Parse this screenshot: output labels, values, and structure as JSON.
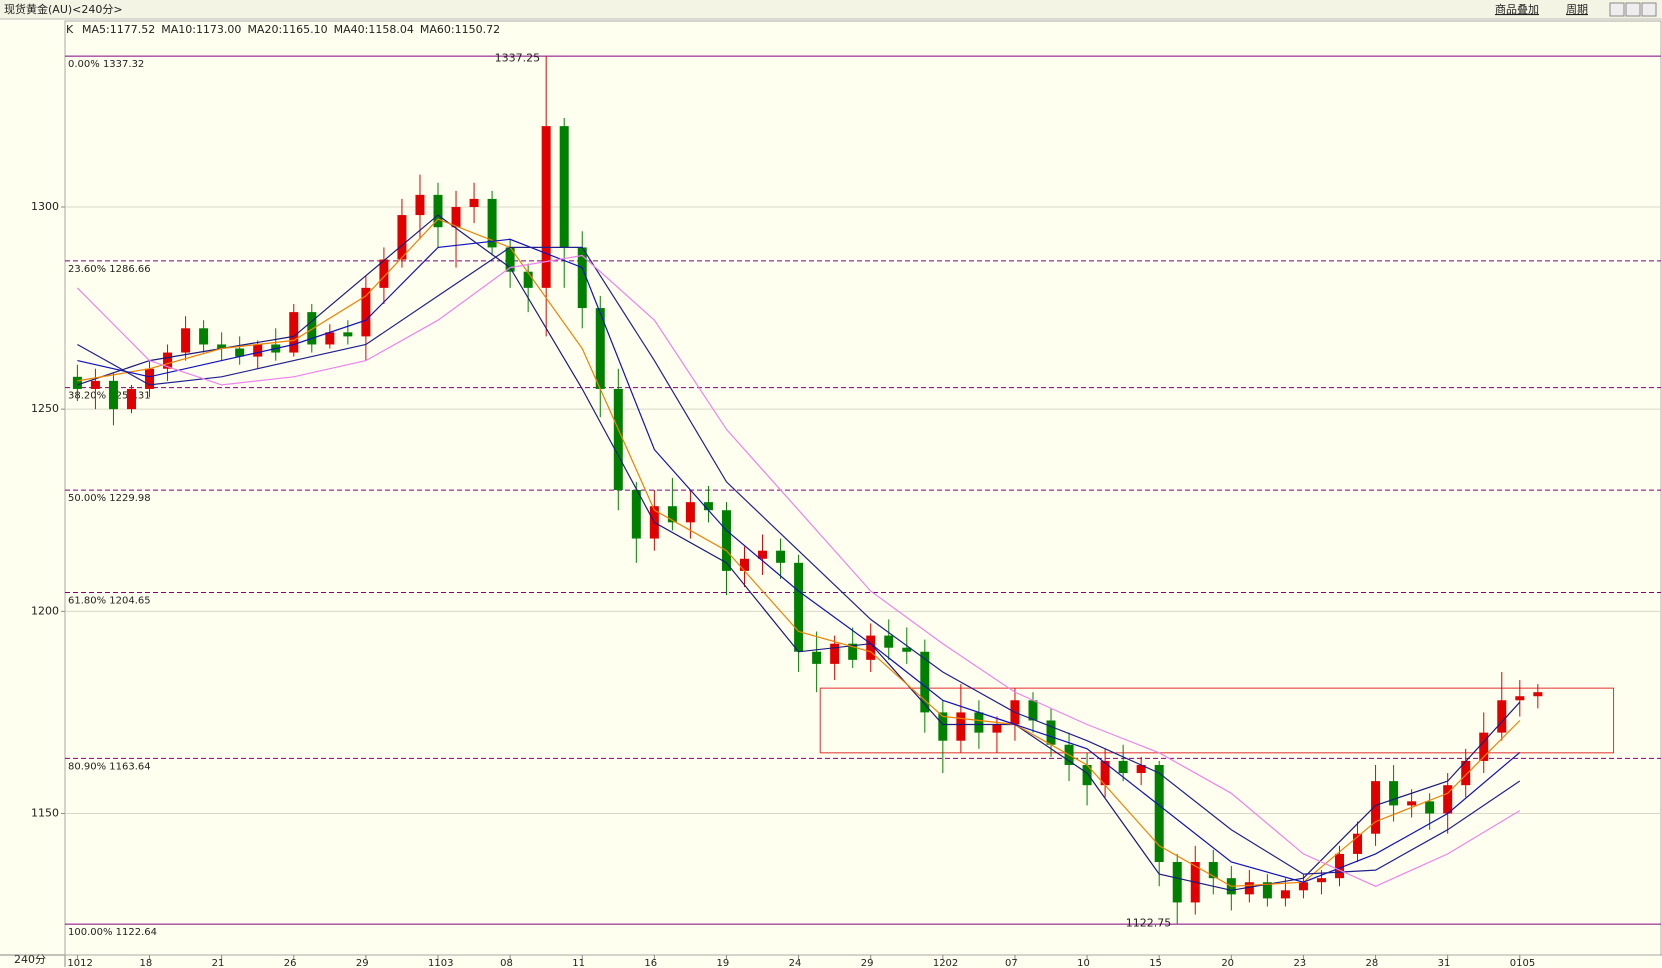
{
  "header": {
    "title": "现货黄金(AU)<240分>",
    "buttons": [
      "商品叠加",
      "周期"
    ]
  },
  "chart_data": {
    "type": "candlestick",
    "indicator": "K",
    "period": "240分",
    "categories": [
      "1012",
      null,
      null,
      null,
      "18",
      null,
      null,
      null,
      "21",
      null,
      null,
      null,
      "26",
      null,
      null,
      null,
      "29",
      null,
      null,
      null,
      "1103",
      null,
      null,
      null,
      "08",
      null,
      null,
      null,
      "11",
      null,
      null,
      null,
      "16",
      null,
      null,
      null,
      "19",
      null,
      null,
      null,
      "24",
      null,
      null,
      null,
      "29",
      null,
      null,
      null,
      "1202",
      null,
      null,
      null,
      "07",
      null,
      null,
      null,
      "10",
      null,
      null,
      null,
      "15",
      null,
      null,
      null,
      "20",
      null,
      null,
      null,
      "23",
      null,
      null,
      null,
      "28",
      null,
      null,
      null,
      "31",
      null,
      null,
      null,
      "0105",
      null
    ],
    "candles": {
      "open": [
        1258,
        1255,
        1257,
        1250,
        1255,
        1260,
        1264,
        1270,
        1266,
        1265,
        1263,
        1266,
        1264,
        1274,
        1266,
        1269,
        1268,
        1280,
        1287,
        1298,
        1303,
        1295,
        1300,
        1302,
        1290,
        1284,
        1280,
        1320,
        1290,
        1275,
        1255,
        1230,
        1218,
        1226,
        1222,
        1227,
        1225,
        1210,
        1213,
        1215,
        1212,
        1190,
        1187,
        1192,
        1188,
        1194,
        1191,
        1190,
        1175,
        1168,
        1175,
        1170,
        1172,
        1178,
        1173,
        1167,
        1162,
        1157,
        1163,
        1160,
        1162,
        1138,
        1128,
        1138,
        1134,
        1130,
        1133,
        1129,
        1131,
        1133,
        1134,
        1140,
        1145,
        1158,
        1152,
        1153,
        1150,
        1157,
        1163,
        1170,
        1178,
        1179
      ],
      "high": [
        1261,
        1260,
        1259,
        1256,
        1262,
        1266,
        1273,
        1272,
        1269,
        1268,
        1267,
        1270,
        1276,
        1276,
        1271,
        1272,
        1283,
        1290,
        1302,
        1308,
        1306,
        1304,
        1306,
        1304,
        1292,
        1286,
        1337.25,
        1322,
        1294,
        1278,
        1260,
        1232,
        1230,
        1233,
        1230,
        1231,
        1227,
        1216,
        1219,
        1218,
        1214,
        1195,
        1194,
        1196,
        1197,
        1198,
        1196,
        1193,
        1178,
        1182,
        1178,
        1174,
        1181,
        1180,
        1176,
        1170,
        1165,
        1166,
        1167,
        1164,
        1163,
        1140,
        1142,
        1141,
        1137,
        1136,
        1135,
        1134,
        1135,
        1136,
        1142,
        1148,
        1162,
        1162,
        1156,
        1155,
        1160,
        1166,
        1175,
        1185,
        1183,
        1182
      ],
      "low": [
        1252,
        1250,
        1246,
        1249,
        1253,
        1257,
        1262,
        1264,
        1262,
        1261,
        1260,
        1262,
        1263,
        1264,
        1265,
        1266,
        1262,
        1276,
        1285,
        1292,
        1290,
        1285,
        1296,
        1288,
        1280,
        1274,
        1268,
        1280,
        1270,
        1248,
        1225,
        1212,
        1215,
        1220,
        1218,
        1222,
        1204,
        1206,
        1209,
        1208,
        1185,
        1180,
        1183,
        1186,
        1185,
        1188,
        1187,
        1170,
        1160,
        1165,
        1166,
        1165,
        1168,
        1170,
        1164,
        1158,
        1152,
        1154,
        1158,
        1157,
        1132,
        1122.75,
        1125,
        1130,
        1126,
        1128,
        1127,
        1127,
        1129,
        1130,
        1132,
        1138,
        1142,
        1148,
        1149,
        1146,
        1145,
        1154,
        1160,
        1168,
        1174,
        1176
      ],
      "close": [
        1255,
        1257,
        1250,
        1255,
        1260,
        1264,
        1270,
        1266,
        1265,
        1263,
        1266,
        1264,
        1274,
        1266,
        1269,
        1268,
        1280,
        1287,
        1298,
        1303,
        1295,
        1300,
        1302,
        1290,
        1284,
        1280,
        1320,
        1290,
        1275,
        1255,
        1230,
        1218,
        1226,
        1222,
        1227,
        1225,
        1210,
        1213,
        1215,
        1212,
        1190,
        1187,
        1192,
        1188,
        1194,
        1191,
        1190,
        1175,
        1168,
        1175,
        1170,
        1172,
        1178,
        1173,
        1167,
        1162,
        1157,
        1163,
        1160,
        1162,
        1138,
        1128,
        1138,
        1134,
        1130,
        1133,
        1129,
        1131,
        1133,
        1134,
        1140,
        1145,
        1158,
        1152,
        1153,
        1150,
        1157,
        1163,
        1170,
        1178,
        1179,
        1180
      ]
    },
    "up_color": "#e00000",
    "down_color": "#008000",
    "ma_x": [
      0,
      4,
      8,
      12,
      16,
      20,
      24,
      28,
      32,
      36,
      40,
      44,
      48,
      52,
      56,
      60,
      64,
      68,
      72,
      76,
      80
    ],
    "ma_series": [
      {
        "label": "MA5:1177.52",
        "color": "#1a1a80",
        "values": [
          1256,
          1262,
          1265,
          1268,
          1283,
          1298,
          1285,
          1255,
          1222,
          1212,
          1190,
          1192,
          1172,
          1172,
          1160,
          1135,
          1131,
          1134,
          1152,
          1158,
          1177.52
        ]
      },
      {
        "label": "MA10:1173.00",
        "color": "#f08000",
        "values": [
          1257,
          1260,
          1265,
          1267,
          1278,
          1297,
          1290,
          1265,
          1225,
          1215,
          1195,
          1190,
          1174,
          1172,
          1162,
          1142,
          1132,
          1133,
          1148,
          1155,
          1173
        ]
      },
      {
        "label": "MA20:1165.10",
        "color": "#1010c0",
        "values": [
          1262,
          1258,
          1262,
          1266,
          1272,
          1290,
          1292,
          1285,
          1240,
          1220,
          1205,
          1192,
          1178,
          1172,
          1166,
          1152,
          1138,
          1133,
          1140,
          1150,
          1165.1
        ]
      },
      {
        "label": "MA40:1158.04",
        "color": "#202090",
        "values": [
          1266,
          1256,
          1258,
          1262,
          1266,
          1278,
          1290,
          1290,
          1262,
          1232,
          1215,
          1198,
          1185,
          1175,
          1168,
          1160,
          1146,
          1135,
          1136,
          1146,
          1158.04
        ]
      },
      {
        "label": "MA60:1150.72",
        "color": "#ee82ee",
        "values": [
          1280,
          1262,
          1256,
          1258,
          1262,
          1272,
          1285,
          1288,
          1272,
          1245,
          1225,
          1205,
          1192,
          1180,
          1172,
          1165,
          1155,
          1140,
          1132,
          1140,
          1150.72
        ]
      }
    ],
    "fib_levels": [
      {
        "value": 1337.32,
        "label": "0.00% 1337.32"
      },
      {
        "value": 1286.66,
        "label": "23.60% 1286.66"
      },
      {
        "value": 1255.31,
        "label": "38.20% 1255.31"
      },
      {
        "value": 1229.98,
        "label": "50.00% 1229.98"
      },
      {
        "value": 1204.65,
        "label": "61.80% 1204.65"
      },
      {
        "value": 1163.64,
        "label": "80.90% 1163.64"
      },
      {
        "value": 1122.64,
        "label": "100.00% 1122.64"
      }
    ],
    "box": {
      "x": [
        41.2,
        85.2
      ],
      "y": [
        1165,
        1181
      ]
    },
    "ylim": [
      1115,
      1346
    ],
    "yticks": [
      1150,
      1200,
      1250,
      1300
    ],
    "grid": true
  }
}
